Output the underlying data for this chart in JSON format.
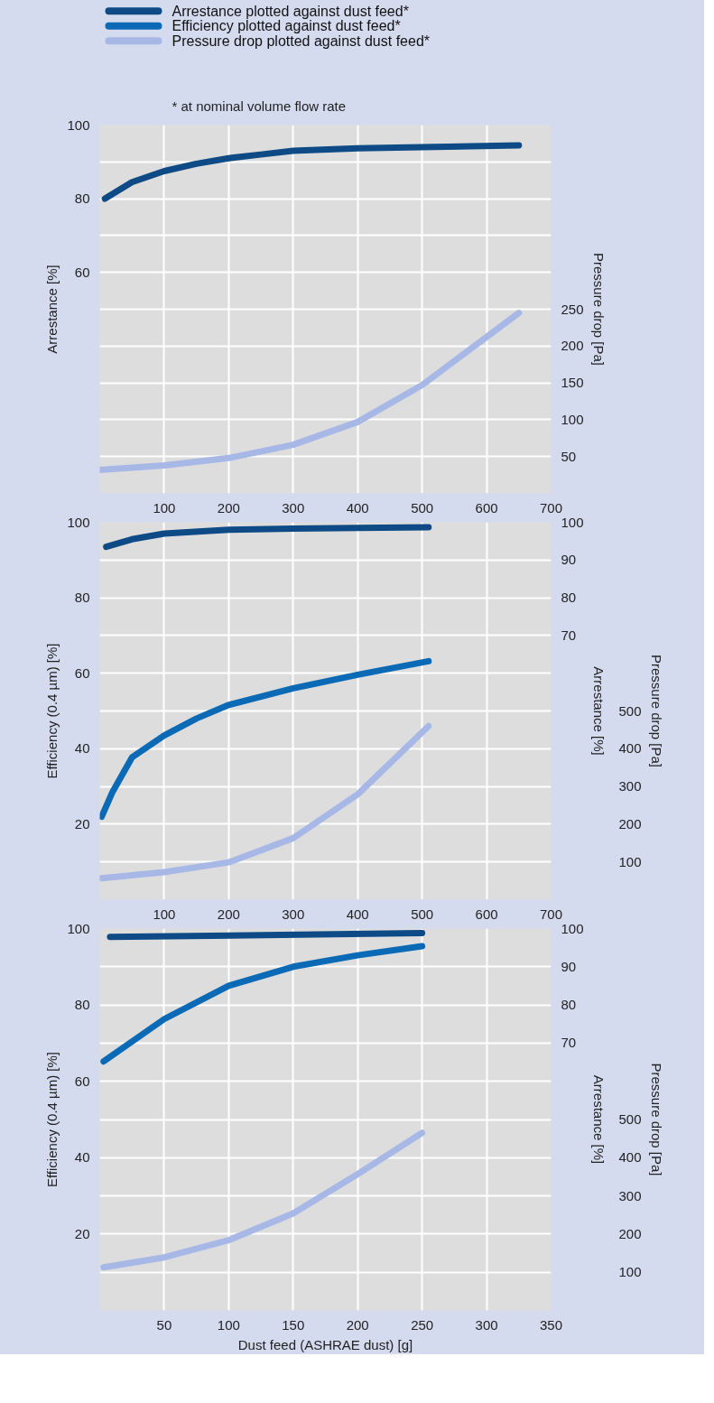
{
  "chart_data": [
    {
      "type": "line",
      "annotations": [
        "* at nominal volume flow rate"
      ],
      "ylabel": "Arrestance [%]",
      "y2label": "Pressure drop [Pa]",
      "grid": true,
      "line_style": "solid",
      "xlim": [
        0,
        700
      ],
      "xticks": [
        100,
        200,
        300,
        400,
        500,
        600,
        700
      ],
      "ylim": [
        0,
        100
      ],
      "yticks": [
        {
          "value": 10,
          "label": null
        },
        {
          "value": 20,
          "label": null
        },
        {
          "value": 30,
          "label": null
        },
        {
          "value": 40,
          "label": null
        },
        {
          "value": 50,
          "label": null
        },
        60,
        {
          "value": 70,
          "label": null
        },
        80,
        {
          "value": 90,
          "label": null
        },
        100
      ],
      "y2lim": [
        0,
        500
      ],
      "y2ticks": [
        50,
        100,
        150,
        200,
        250
      ],
      "series": [
        {
          "color": "#0d4a86",
          "axis": "y",
          "x": [
            8,
            50,
            100,
            150,
            200,
            250,
            300,
            400,
            500,
            650
          ],
          "values": [
            80,
            84.5,
            87.5,
            89.5,
            91,
            92,
            93,
            93.7,
            94,
            94.5
          ]
        },
        {
          "color": "#a7b8e6",
          "axis": "y2",
          "x": [
            0,
            100,
            200,
            300,
            400,
            500,
            650
          ],
          "values": [
            32,
            38,
            48,
            66,
            97,
            147,
            245
          ]
        }
      ]
    },
    {
      "type": "line",
      "legend": "top",
      "ylabel": "Efficiency (0.4 µm) [%]",
      "y2label": "Arrestance [%]",
      "y3label": "Pressure drop [Pa]",
      "grid": true,
      "line_style": "solid",
      "xlim": [
        0,
        700
      ],
      "xticks": [
        100,
        200,
        300,
        400,
        500,
        600,
        700
      ],
      "ylim": [
        0,
        100
      ],
      "yticks": [
        {
          "value": 10,
          "label": null
        },
        20,
        {
          "value": 30,
          "label": null
        },
        40,
        {
          "value": 50,
          "label": null
        },
        60,
        {
          "value": 70,
          "label": null
        },
        80,
        {
          "value": 90,
          "label": null
        },
        100
      ],
      "y2lim": [
        0,
        100
      ],
      "y2ticks": [
        70,
        80,
        90,
        100
      ],
      "y3lim": [
        0,
        1000
      ],
      "y3ticks": [
        100,
        200,
        300,
        400,
        500
      ],
      "series": [
        {
          "name": "Arrestance plotted against dust feed*",
          "color": "#0d4a86",
          "axis": "y2",
          "x": [
            10,
            50,
            100,
            200,
            300,
            400,
            510
          ],
          "values": [
            93.5,
            95.5,
            97,
            98,
            98.3,
            98.5,
            98.7
          ]
        },
        {
          "name": "Efficiency plotted against dust feed*",
          "color": "#0a6ab5",
          "axis": "y",
          "x": [
            3,
            20,
            50,
            100,
            150,
            200,
            300,
            400,
            510
          ],
          "values": [
            22,
            28.6,
            37.7,
            43.5,
            48,
            51.6,
            56,
            59.6,
            63.2
          ]
        },
        {
          "name": "Pressure drop plotted against dust feed*",
          "color": "#a7b8e6",
          "axis": "y3",
          "x": [
            3,
            100,
            200,
            300,
            400,
            510
          ],
          "values": [
            57,
            73,
            99,
            163,
            279,
            460
          ]
        }
      ]
    },
    {
      "type": "line",
      "xlabel": "Dust feed (ASHRAE dust) [g]",
      "ylabel": "Efficiency (0.4 µm) [%]",
      "y2label": "Arrestance [%]",
      "y3label": "Pressure drop [Pa]",
      "grid": true,
      "line_style": "solid",
      "xlim": [
        0,
        350
      ],
      "xticks": [
        50,
        100,
        150,
        200,
        250,
        300,
        350
      ],
      "ylim": [
        0,
        100
      ],
      "yticks": [
        {
          "value": 10,
          "label": null
        },
        20,
        {
          "value": 30,
          "label": null
        },
        40,
        {
          "value": 50,
          "label": null
        },
        60,
        {
          "value": 70,
          "label": null
        },
        80,
        {
          "value": 90,
          "label": null
        },
        100
      ],
      "y2lim": [
        0,
        100
      ],
      "y2ticks": [
        70,
        80,
        90,
        100
      ],
      "y3lim": [
        0,
        1000
      ],
      "y3ticks": [
        100,
        200,
        300,
        400,
        500
      ],
      "series": [
        {
          "color": "#0d4a86",
          "axis": "y2",
          "x": [
            8,
            250
          ],
          "values": [
            97.8,
            98.8
          ]
        },
        {
          "color": "#0a6ab5",
          "axis": "y",
          "x": [
            3,
            50,
            100,
            150,
            200,
            250
          ],
          "values": [
            65.2,
            76.3,
            85,
            90,
            93,
            95.4
          ]
        },
        {
          "color": "#a7b8e6",
          "axis": "y3",
          "x": [
            3,
            50,
            100,
            150,
            200,
            250
          ],
          "values": [
            113,
            139,
            184,
            254,
            357,
            465
          ]
        }
      ]
    }
  ]
}
